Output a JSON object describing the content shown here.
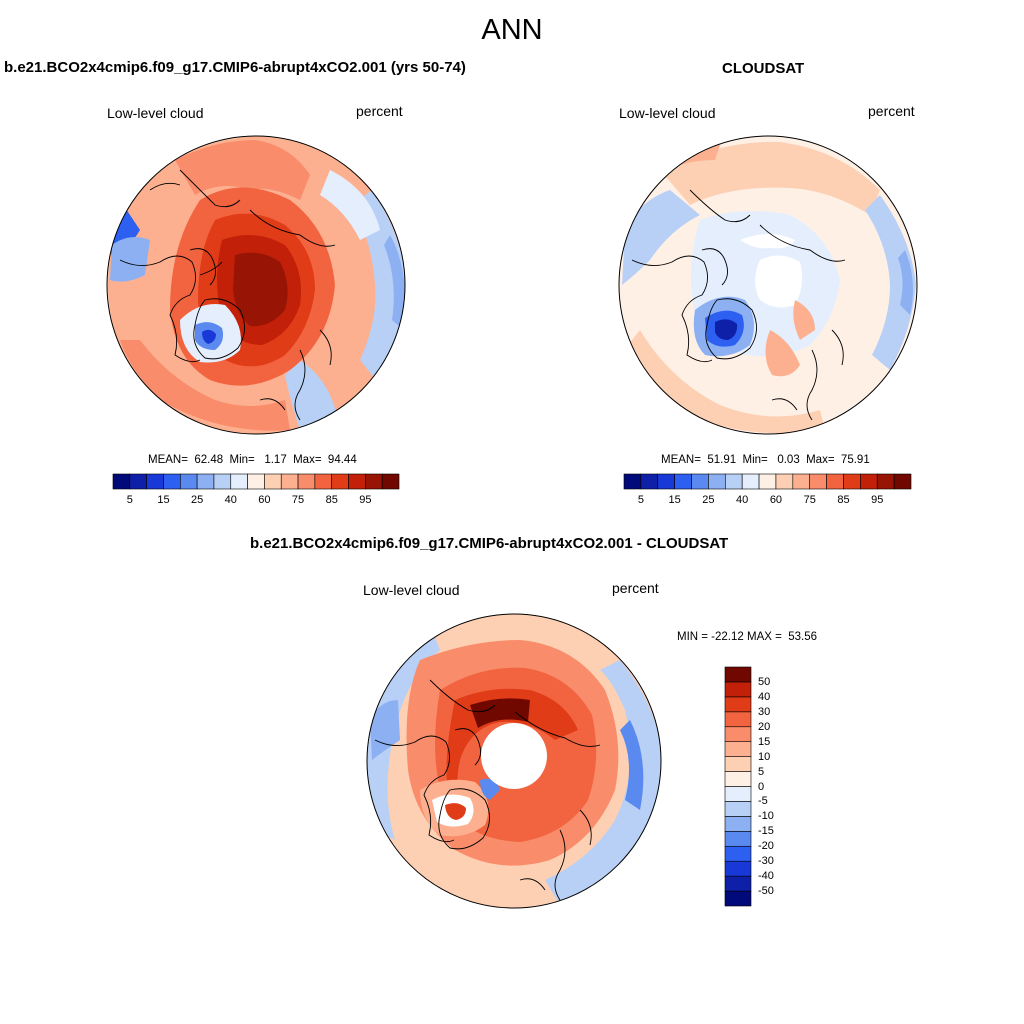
{
  "title": "ANN",
  "panels": {
    "model": {
      "title": "b.e21.BCO2x4cmip6.f09_g17.CMIP6-abrupt4xCO2.001 (yrs 50-74)",
      "left_label": "Low-level cloud",
      "right_label": "percent",
      "stats": "MEAN=  62.48  Min=   1.17  Max=  94.44",
      "mean": 62.48,
      "min": 1.17,
      "max": 94.44
    },
    "obs": {
      "title": "CLOUDSAT",
      "left_label": "Low-level cloud",
      "right_label": "percent",
      "stats": "MEAN=  51.91  Min=   0.03  Max=  75.91",
      "mean": 51.91,
      "min": 0.03,
      "max": 75.91
    },
    "diff": {
      "title": "b.e21.BCO2x4cmip6.f09_g17.CMIP6-abrupt4xCO2.001 - CLOUDSAT",
      "left_label": "Low-level cloud",
      "right_label": "percent",
      "stats": "MIN = -22.12 MAX =  53.56",
      "min": -22.12,
      "max": 53.56
    }
  },
  "colorbar_abs": {
    "colors": [
      "#000a78",
      "#0e20a8",
      "#1838d8",
      "#2d5ff0",
      "#5a8af0",
      "#8cb0f2",
      "#b8d0f6",
      "#e4eefc",
      "#fff0e6",
      "#fdd0b4",
      "#fcb090",
      "#f98c6a",
      "#f26440",
      "#e03c18",
      "#c22008",
      "#981404",
      "#700800"
    ],
    "tick_labels": [
      "5",
      "15",
      "25",
      "40",
      "60",
      "75",
      "85",
      "95"
    ],
    "tick_positions": [
      1,
      3,
      5,
      7,
      9,
      11,
      13,
      15
    ]
  },
  "colorbar_diff": {
    "colors": [
      "#000a78",
      "#0e20a8",
      "#1838d8",
      "#2d5ff0",
      "#5a8af0",
      "#8cb0f2",
      "#b8d0f6",
      "#e4eefc",
      "#fff0e6",
      "#fdd0b4",
      "#fcb090",
      "#f98c6a",
      "#f26440",
      "#e03c18",
      "#c22008",
      "#700800"
    ],
    "tick_labels": [
      "-50",
      "-40",
      "-30",
      "-20",
      "-15",
      "-10",
      "-5",
      "0",
      "5",
      "10",
      "15",
      "20",
      "30",
      "40",
      "50"
    ]
  }
}
